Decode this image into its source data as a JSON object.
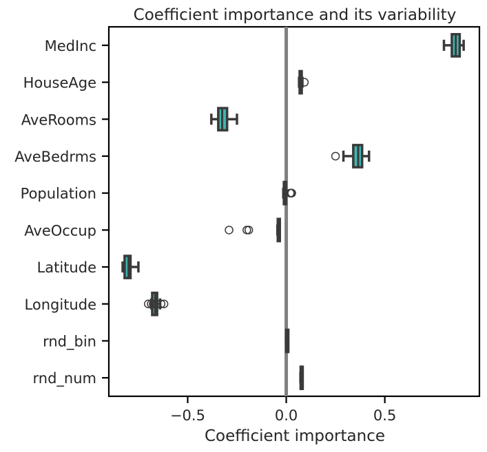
{
  "chart_data": {
    "type": "boxplot",
    "orientation": "horizontal",
    "title": "Coefficient importance and its variability",
    "xlabel": "Coefficient importance",
    "ylabel": "",
    "xlim": [
      -0.9,
      0.98
    ],
    "xticks": [
      -0.5,
      0.0,
      0.5
    ],
    "xtick_labels": [
      "−0.5",
      "0.0",
      "0.5"
    ],
    "reference_line": {
      "x": 0.0,
      "color": "#808080"
    },
    "grid": false,
    "legend": null,
    "colors": {
      "box_fill": "#3fb6b0",
      "box_edge": "#3a3a3a",
      "axis": "#000000",
      "text": "#262626"
    },
    "categories": [
      "MedInc",
      "HouseAge",
      "AveRooms",
      "AveBedrms",
      "Population",
      "AveOccup",
      "Latitude",
      "Longitude",
      "rnd_bin",
      "rnd_num"
    ],
    "boxes": [
      {
        "category": "MedInc",
        "whislo": 0.8,
        "q1": 0.84,
        "med": 0.86,
        "q3": 0.88,
        "whishi": 0.9,
        "fliers": []
      },
      {
        "category": "HouseAge",
        "whislo": 0.065,
        "q1": 0.068,
        "med": 0.073,
        "q3": 0.078,
        "whishi": 0.082,
        "fliers": [
          0.092
        ]
      },
      {
        "category": "AveRooms",
        "whislo": -0.38,
        "q1": -0.345,
        "med": -0.325,
        "q3": -0.3,
        "whishi": -0.25,
        "fliers": []
      },
      {
        "category": "AveBedrms",
        "whislo": 0.29,
        "q1": 0.34,
        "med": 0.365,
        "q3": 0.385,
        "whishi": 0.42,
        "fliers": [
          0.25
        ]
      },
      {
        "category": "Population",
        "whislo": -0.015,
        "q1": -0.012,
        "med": -0.008,
        "q3": -0.005,
        "whishi": -0.002,
        "fliers": [
          0.02,
          0.025,
          0.028
        ]
      },
      {
        "category": "AveOccup",
        "whislo": -0.045,
        "q1": -0.043,
        "med": -0.041,
        "q3": -0.039,
        "whishi": -0.037,
        "fliers": [
          -0.29,
          -0.2,
          -0.19
        ]
      },
      {
        "category": "Latitude",
        "whislo": -0.83,
        "q1": -0.82,
        "med": -0.8,
        "q3": -0.79,
        "whishi": -0.75,
        "fliers": []
      },
      {
        "category": "Longitude",
        "whislo": -0.685,
        "q1": -0.68,
        "med": -0.665,
        "q3": -0.655,
        "whishi": -0.64,
        "fliers": [
          -0.7,
          -0.685,
          -0.675,
          -0.655,
          -0.635,
          -0.62
        ]
      },
      {
        "category": "rnd_bin",
        "whislo": 0.0,
        "q1": 0.0,
        "med": 0.0,
        "q3": 0.001,
        "whishi": 0.001,
        "fliers": []
      },
      {
        "category": "rnd_num",
        "whislo": 0.072,
        "q1": 0.073,
        "med": 0.075,
        "q3": 0.078,
        "whishi": 0.08,
        "fliers": []
      }
    ]
  }
}
